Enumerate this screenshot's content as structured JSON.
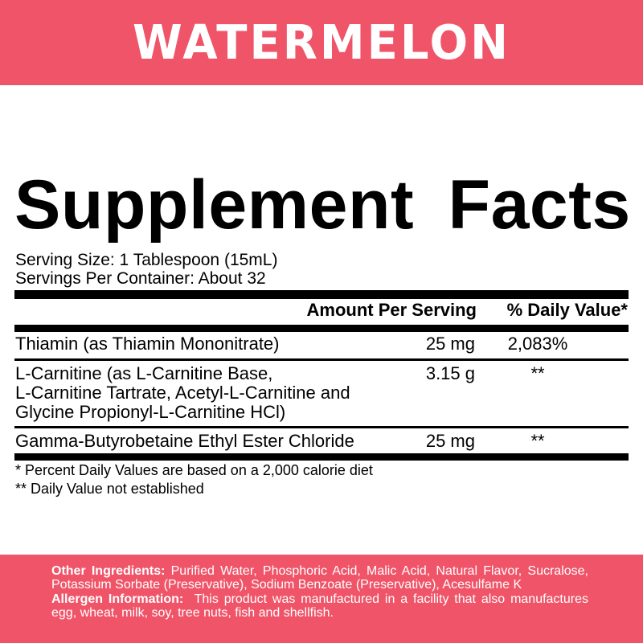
{
  "colors": {
    "accent": "#f05468",
    "text": "#000000",
    "background": "#ffffff"
  },
  "flavor": "WATERMELON",
  "title": "Supplement Facts",
  "serving_size": "Serving Size: 1 Tablespoon (15mL)",
  "servings_per_container": "Servings Per Container: About 32",
  "table": {
    "headers": {
      "amount": "Amount Per Serving",
      "daily_value": "% Daily Value*"
    },
    "rows": [
      {
        "name": "Thiamin (as Thiamin Mononitrate)",
        "amount": "25 mg",
        "daily_value": "2,083%"
      },
      {
        "name_lines": [
          "L-Carnitine (as L-Carnitine Base,",
          "L-Carnitine Tartrate, Acetyl-L-Carnitine and",
          "Glycine Propionyl-L-Carnitine HCl)"
        ],
        "amount": "3.15 g",
        "daily_value": "**"
      },
      {
        "name": "Gamma-Butyrobetaine Ethyl Ester Chloride",
        "amount": "25 mg",
        "daily_value": "**"
      }
    ]
  },
  "footnotes": [
    "* Percent Daily Values are based on a 2,000 calorie diet",
    "** Daily Value not established"
  ],
  "other_ingredients": {
    "label": "Other Ingredients:",
    "text": " Purified Water, Phosphoric Acid, Malic  Acid, Natural Flavor, Sucralose, Potassium Sorbate (Preservative),  Sodium Benzoate (Preservative), Acesulfame K"
  },
  "allergen": {
    "label": "Allergen Information:",
    "text": "  This product was manufactured in a facility that also manufactures egg, wheat, milk, soy, tree nuts, fish and shellfish."
  }
}
